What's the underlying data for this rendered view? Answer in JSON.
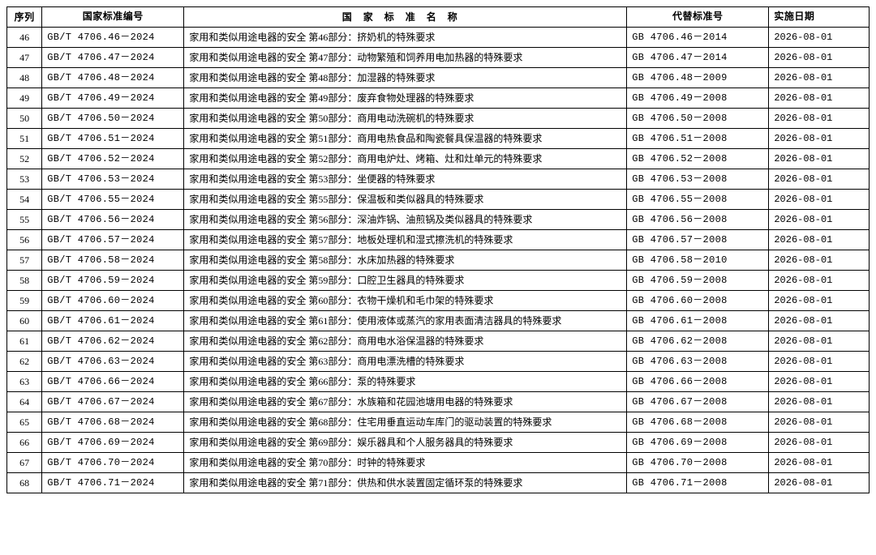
{
  "headers": {
    "seq": "序列",
    "std": "国家标准编号",
    "name": "国家标准名称",
    "repl": "代替标准号",
    "date": "实施日期"
  },
  "rows": [
    {
      "seq": "46",
      "std": "GB/T 4706.46－2024",
      "name": "家用和类似用途电器的安全 第46部分：挤奶机的特殊要求",
      "repl": "GB 4706.46－2014",
      "date": "2026-08-01"
    },
    {
      "seq": "47",
      "std": "GB/T 4706.47－2024",
      "name": "家用和类似用途电器的安全 第47部分：动物繁殖和饲养用电加热器的特殊要求",
      "repl": "GB 4706.47－2014",
      "date": "2026-08-01"
    },
    {
      "seq": "48",
      "std": "GB/T 4706.48－2024",
      "name": "家用和类似用途电器的安全 第48部分：加湿器的特殊要求",
      "repl": "GB 4706.48－2009",
      "date": "2026-08-01"
    },
    {
      "seq": "49",
      "std": "GB/T 4706.49－2024",
      "name": "家用和类似用途电器的安全 第49部分：废弃食物处理器的特殊要求",
      "repl": "GB 4706.49－2008",
      "date": "2026-08-01"
    },
    {
      "seq": "50",
      "std": "GB/T 4706.50－2024",
      "name": "家用和类似用途电器的安全 第50部分：商用电动洗碗机的特殊要求",
      "repl": "GB 4706.50－2008",
      "date": "2026-08-01"
    },
    {
      "seq": "51",
      "std": "GB/T 4706.51－2024",
      "name": "家用和类似用途电器的安全 第51部分：商用电热食品和陶瓷餐具保温器的特殊要求",
      "repl": "GB 4706.51－2008",
      "date": "2026-08-01"
    },
    {
      "seq": "52",
      "std": "GB/T 4706.52－2024",
      "name": "家用和类似用途电器的安全 第52部分：商用电炉灶、烤箱、灶和灶单元的特殊要求",
      "repl": "GB 4706.52－2008",
      "date": "2026-08-01"
    },
    {
      "seq": "53",
      "std": "GB/T 4706.53－2024",
      "name": "家用和类似用途电器的安全 第53部分：坐便器的特殊要求",
      "repl": "GB 4706.53－2008",
      "date": "2026-08-01"
    },
    {
      "seq": "54",
      "std": "GB/T 4706.55－2024",
      "name": "家用和类似用途电器的安全 第55部分：保温板和类似器具的特殊要求",
      "repl": "GB 4706.55－2008",
      "date": "2026-08-01"
    },
    {
      "seq": "55",
      "std": "GB/T 4706.56－2024",
      "name": "家用和类似用途电器的安全 第56部分：深油炸锅、油煎锅及类似器具的特殊要求",
      "repl": "GB 4706.56－2008",
      "date": "2026-08-01"
    },
    {
      "seq": "56",
      "std": "GB/T 4706.57－2024",
      "name": "家用和类似用途电器的安全 第57部分：地板处理机和湿式擦洗机的特殊要求",
      "repl": "GB 4706.57－2008",
      "date": "2026-08-01"
    },
    {
      "seq": "57",
      "std": "GB/T 4706.58－2024",
      "name": "家用和类似用途电器的安全 第58部分：水床加热器的特殊要求",
      "repl": "GB 4706.58－2010",
      "date": "2026-08-01"
    },
    {
      "seq": "58",
      "std": "GB/T 4706.59－2024",
      "name": "家用和类似用途电器的安全 第59部分：口腔卫生器具的特殊要求",
      "repl": "GB 4706.59－2008",
      "date": "2026-08-01"
    },
    {
      "seq": "59",
      "std": "GB/T 4706.60－2024",
      "name": "家用和类似用途电器的安全 第60部分：衣物干燥机和毛巾架的特殊要求",
      "repl": "GB 4706.60－2008",
      "date": "2026-08-01"
    },
    {
      "seq": "60",
      "std": "GB/T 4706.61－2024",
      "name": "家用和类似用途电器的安全 第61部分：使用液体或蒸汽的家用表面清洁器具的特殊要求",
      "repl": "GB 4706.61－2008",
      "date": "2026-08-01"
    },
    {
      "seq": "61",
      "std": "GB/T 4706.62－2024",
      "name": "家用和类似用途电器的安全 第62部分：商用电水浴保温器的特殊要求",
      "repl": "GB 4706.62－2008",
      "date": "2026-08-01"
    },
    {
      "seq": "62",
      "std": "GB/T 4706.63－2024",
      "name": "家用和类似用途电器的安全 第63部分：商用电漂洗槽的特殊要求",
      "repl": "GB 4706.63－2008",
      "date": "2026-08-01"
    },
    {
      "seq": "63",
      "std": "GB/T 4706.66－2024",
      "name": "家用和类似用途电器的安全 第66部分：泵的特殊要求",
      "repl": "GB 4706.66－2008",
      "date": "2026-08-01"
    },
    {
      "seq": "64",
      "std": "GB/T 4706.67－2024",
      "name": "家用和类似用途电器的安全 第67部分：水族箱和花园池塘用电器的特殊要求",
      "repl": "GB 4706.67－2008",
      "date": "2026-08-01"
    },
    {
      "seq": "65",
      "std": "GB/T 4706.68－2024",
      "name": "家用和类似用途电器的安全 第68部分：住宅用垂直运动车库门的驱动装置的特殊要求",
      "repl": "GB 4706.68－2008",
      "date": "2026-08-01"
    },
    {
      "seq": "66",
      "std": "GB/T 4706.69－2024",
      "name": "家用和类似用途电器的安全 第69部分：娱乐器具和个人服务器具的特殊要求",
      "repl": "GB 4706.69－2008",
      "date": "2026-08-01"
    },
    {
      "seq": "67",
      "std": "GB/T 4706.70－2024",
      "name": "家用和类似用途电器的安全 第70部分：时钟的特殊要求",
      "repl": "GB 4706.70－2008",
      "date": "2026-08-01"
    },
    {
      "seq": "68",
      "std": "GB/T 4706.71－2024",
      "name": "家用和类似用途电器的安全 第71部分：供热和供水装置固定循环泵的特殊要求",
      "repl": "GB 4706.71－2008",
      "date": "2026-08-01"
    }
  ]
}
